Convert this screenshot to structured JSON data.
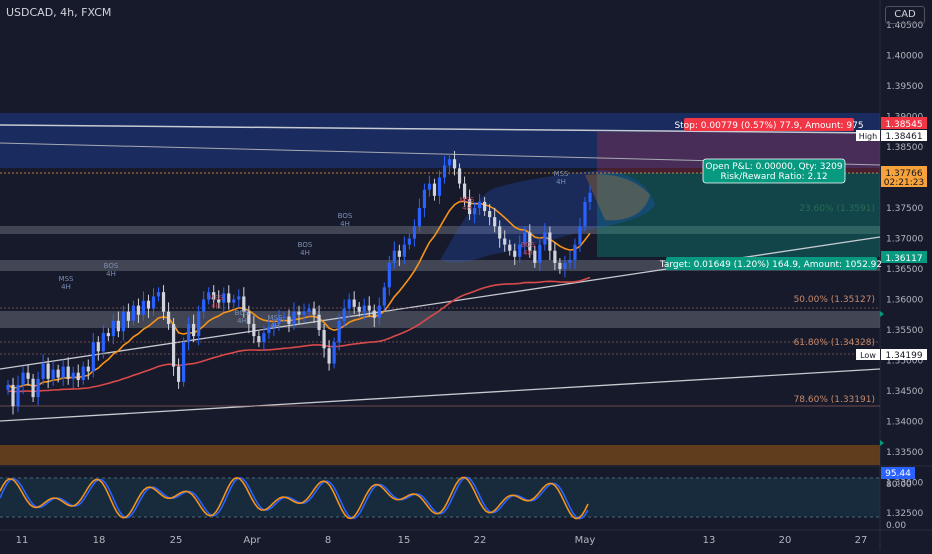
{
  "header": {
    "symbol": "USDCAD, 4h, FXCM",
    "currency": "CAD"
  },
  "chart_data": {
    "type": "candlestick",
    "y_ticks": [
      "1.40500",
      "1.40000",
      "1.39500",
      "1.39000",
      "1.38500",
      "1.38000",
      "1.37500",
      "1.37000",
      "1.36500",
      "1.36000",
      "1.35500",
      "1.35000",
      "1.34500",
      "1.34000",
      "1.33500",
      "1.33000",
      "1.32500"
    ],
    "x_ticks": [
      "11",
      "18",
      "25",
      "Apr",
      "8",
      "15",
      "22",
      "May",
      "13",
      "20",
      "27"
    ],
    "ylim": [
      1.3217,
      1.4094
    ],
    "series": [
      {
        "name": "USDCAD",
        "values": [
          1.346,
          1.3425,
          1.346,
          1.348,
          1.347,
          1.344,
          1.347,
          1.3495,
          1.347,
          1.3485,
          1.3472,
          1.349,
          1.347,
          1.348,
          1.3468,
          1.349,
          1.3482,
          1.353,
          1.3515,
          1.3545,
          1.354,
          1.3565,
          1.3548,
          1.358,
          1.3565,
          1.359,
          1.3575,
          1.3598,
          1.3585,
          1.3605,
          1.3612,
          1.358,
          1.356,
          1.349,
          1.3465,
          1.353,
          1.356,
          1.354,
          1.358,
          1.36,
          1.3612,
          1.36,
          1.3595,
          1.361,
          1.3595,
          1.36,
          1.3605,
          1.358,
          1.356,
          1.354,
          1.353,
          1.3545,
          1.3555,
          1.356,
          1.357,
          1.3572,
          1.356,
          1.358,
          1.3575,
          1.358,
          1.3585,
          1.3575,
          1.355,
          1.352,
          1.3495,
          1.353,
          1.3565,
          1.3585,
          1.36,
          1.3588,
          1.358,
          1.359,
          1.3582,
          1.357,
          1.359,
          1.362,
          1.366,
          1.368,
          1.367,
          1.369,
          1.37,
          1.372,
          1.375,
          1.378,
          1.379,
          1.377,
          1.38,
          1.382,
          1.383,
          1.3815,
          1.379,
          1.3765,
          1.374,
          1.375,
          1.376,
          1.3745,
          1.3735,
          1.372,
          1.37,
          1.369,
          1.368,
          1.367,
          1.369,
          1.371,
          1.368,
          1.366,
          1.369,
          1.371,
          1.368,
          1.366,
          1.365,
          1.366,
          1.3665,
          1.369,
          1.372,
          1.376,
          1.3775
        ]
      }
    ],
    "price_tags": [
      {
        "label": "High",
        "value": "1.38461"
      },
      {
        "value": "1.38545"
      },
      {
        "value": "1.37766",
        "sub": "02:21:23"
      },
      {
        "value": "1.36117"
      },
      {
        "label": "Low",
        "value": "1.34199"
      }
    ],
    "annotations": {
      "stop": "Stop: 0.00779 (0.57%) 77.9, Amount: 975",
      "open_pl_1": "Open P&L: 0.00000, Qty: 3209",
      "open_pl_2": "Risk/Reward Ratio: 2.12",
      "target": "Target: 0.01649 (1.20%) 164.9, Amount: 1052.92",
      "fib_50": "50.00% (1.35127)",
      "fib_618": "61.80% (1.34328)",
      "fib_786": "78.60% (1.33191)",
      "fib_236": "23.60% (1.3591)",
      "structure": [
        {
          "text": "MSS",
          "sub": "4H"
        },
        {
          "text": "BOS",
          "sub": "4H"
        },
        {
          "text": "MSS",
          "sub": "4H"
        },
        {
          "text": "BOS",
          "sub": "4H"
        },
        {
          "text": "MSS",
          "sub": "4H"
        },
        {
          "text": "BOS",
          "sub": "4H"
        },
        {
          "text": "BOS",
          "sub": "4H"
        },
        {
          "text": "MSS",
          "sub": "4H"
        },
        {
          "text": "BOS",
          "sub": "4H"
        },
        {
          "text": "MSS",
          "sub": "4H"
        }
      ]
    },
    "oscillator": {
      "value_tag": "95.44",
      "ticks": [
        "80.00",
        "0.00"
      ]
    },
    "colors": {
      "background": "#161a2b",
      "bull": "#2962ff",
      "bear": "#d1d4dc",
      "ema_fast": "#f7931a",
      "ema_slow": "#d94a4a",
      "stop_tag": "#f23645",
      "target_tag": "#089981",
      "price_tag": "#f7a23b"
    }
  }
}
